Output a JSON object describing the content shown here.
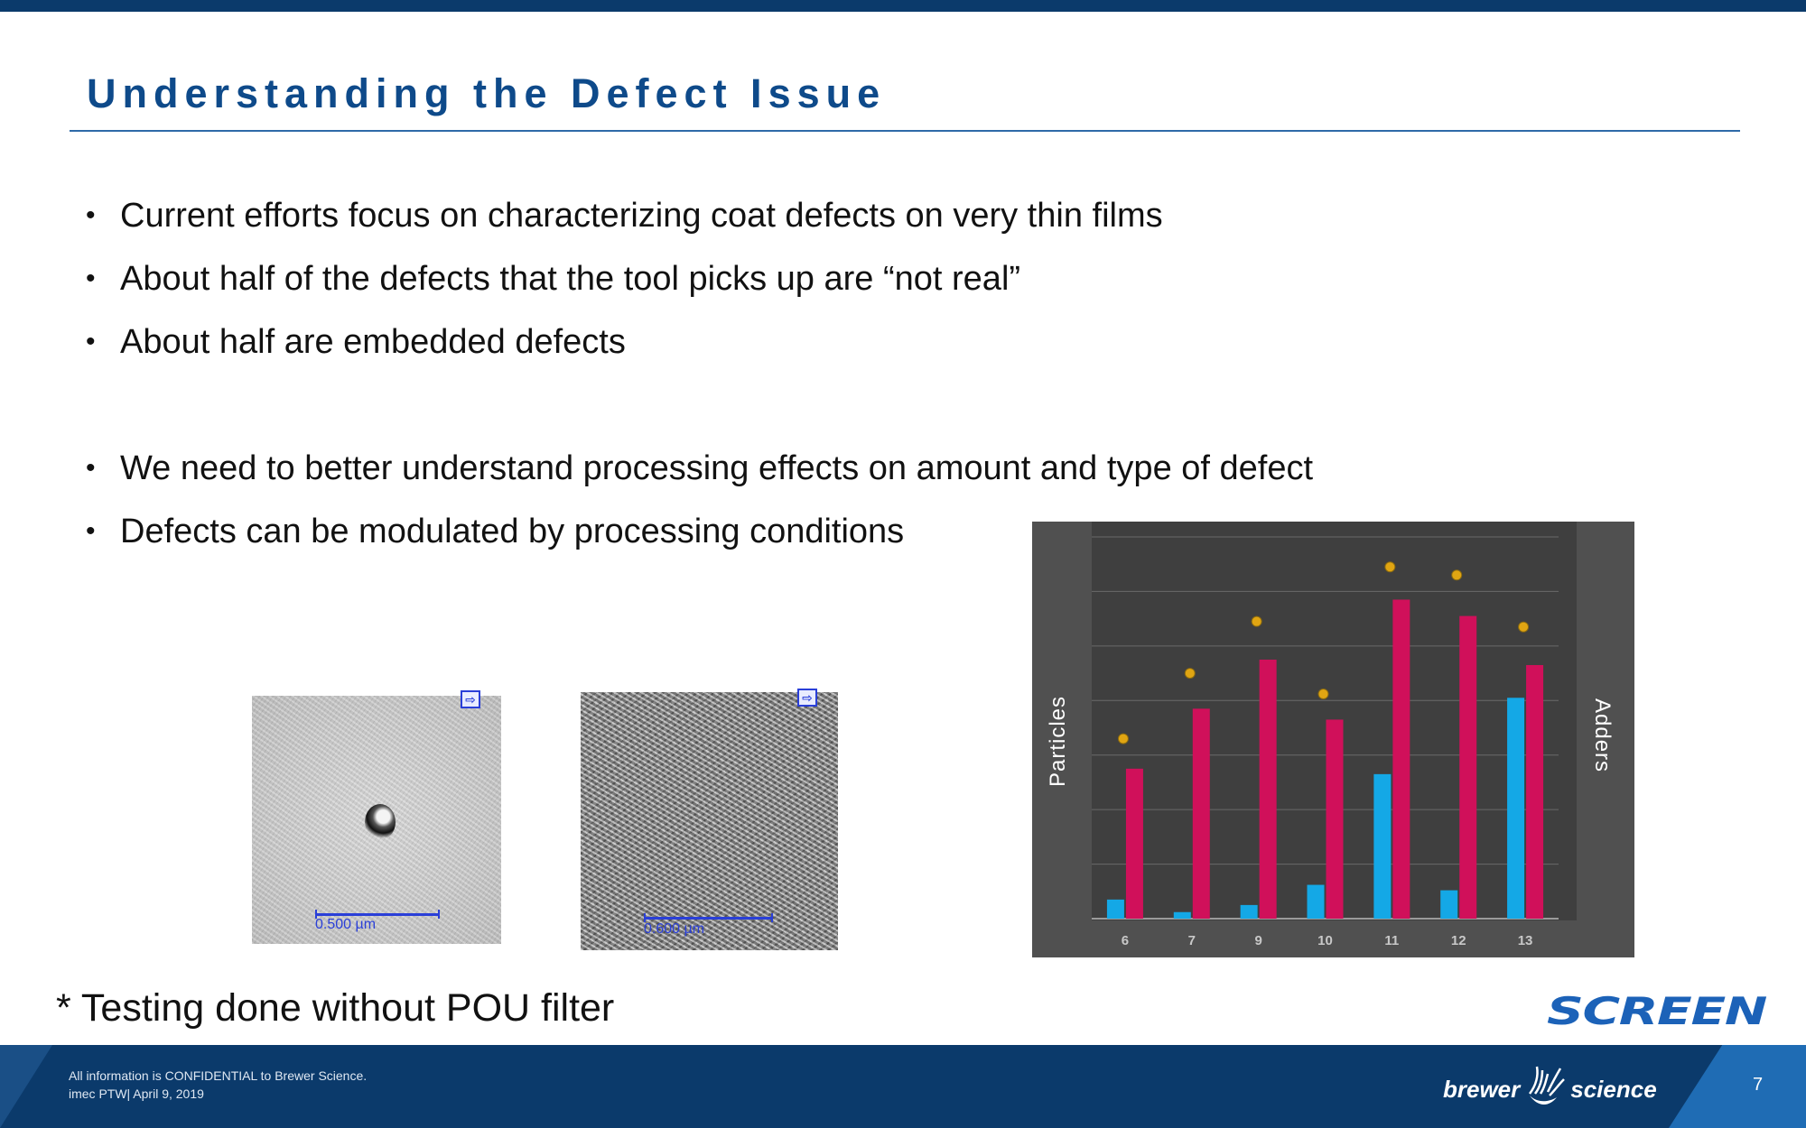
{
  "slide": {
    "title": "Understanding the Defect Issue",
    "bullets_group1": [
      "Current efforts focus on characterizing coat defects on very thin films",
      "About half of the defects that the tool picks up are “not real”",
      "About half are embedded defects"
    ],
    "bullets_group2": [
      "We need to better understand processing effects on amount and type of defect",
      "Defects can be modulated by processing conditions"
    ],
    "bullet_symbol": "•",
    "footnote": "* Testing done without POU filter",
    "images": {
      "image1_scale": "0.500 µm",
      "image2_scale": "0.600 µm",
      "export_glyph": "⇨"
    },
    "logos": {
      "screen": "SCREEN",
      "brewer": "brewer",
      "science": "science"
    },
    "footer": {
      "line1": "All information is CONFIDENTIAL to Brewer Science.",
      "line2": "imec PTW| April 9, 2019",
      "page_number": "7"
    },
    "colors": {
      "brand_dark_blue": "#0b3a6b",
      "title_blue": "#0e4a8a",
      "particles_blue": "#14a8e6",
      "adders_magenta": "#d0105a",
      "marker_gold": "#e0a512"
    }
  },
  "chart_data": {
    "type": "bar",
    "categories": [
      "6",
      "7",
      "9",
      "10",
      "11",
      "12",
      "13"
    ],
    "ylabel": "Particles",
    "y2label": "Adders",
    "ylim": [
      0,
      7
    ],
    "y2lim": [
      0,
      7
    ],
    "grid": true,
    "series": [
      {
        "values": [
          0.35,
          0.12,
          0.25,
          0.62,
          2.65,
          0.52,
          4.05
        ],
        "color": "#14a8e6"
      },
      {
        "values": [
          2.75,
          3.85,
          4.75,
          3.65,
          5.85,
          5.55,
          4.65
        ],
        "color": "#d0105a"
      },
      {
        "type": "scatter",
        "values": [
          3.3,
          4.5,
          5.45,
          4.12,
          6.45,
          6.3,
          5.35
        ],
        "color": "#e0a512"
      }
    ]
  }
}
